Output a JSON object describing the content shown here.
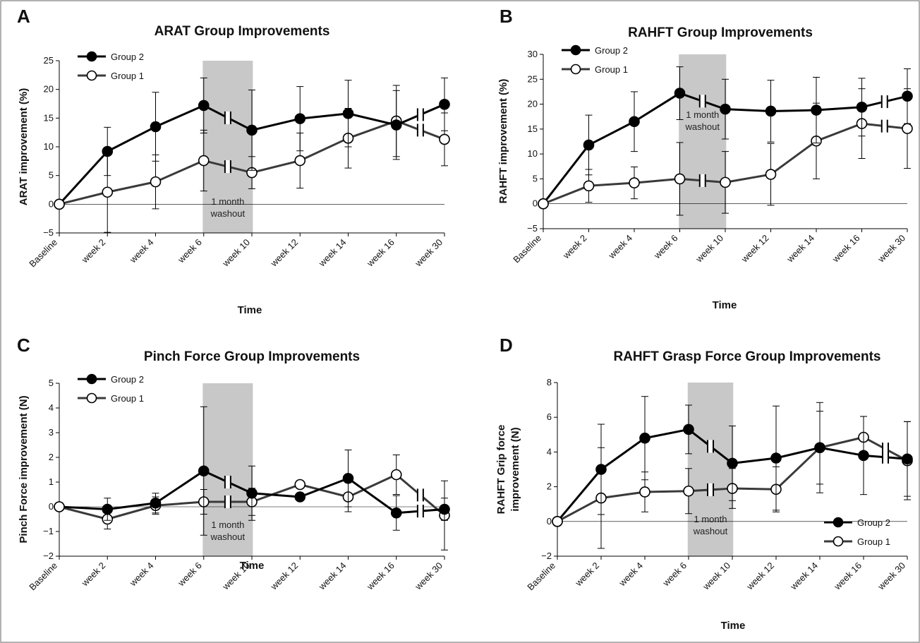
{
  "figure": {
    "panels": [
      {
        "letter": "A",
        "chart_index": 0
      },
      {
        "letter": "B",
        "chart_index": 1
      },
      {
        "letter": "C",
        "chart_index": 2
      },
      {
        "letter": "D",
        "chart_index": 3
      }
    ]
  },
  "chart_data": [
    {
      "type": "line",
      "title": "ARAT Group Improvements",
      "xlabel": "Time",
      "ylabel": "ARAT improvement (%)",
      "categories": [
        "Baseline",
        "week 2",
        "week 4",
        "week 6",
        "week 10",
        "week 12",
        "week 14",
        "week 16",
        "week 30"
      ],
      "ylim": [
        -5,
        25
      ],
      "yticks": [
        -5,
        0,
        5,
        10,
        15,
        20,
        25
      ],
      "legend_position": "top-left",
      "washout_label": [
        "1 month",
        "washout"
      ],
      "washout_range": [
        "week 6",
        "week 10"
      ],
      "series": [
        {
          "name": "Group 2",
          "marker": "filled",
          "values": [
            0,
            9.2,
            13.5,
            17.2,
            12.9,
            14.9,
            15.8,
            13.8,
            17.4
          ],
          "errors": [
            null,
            4.2,
            6.0,
            4.8,
            7.0,
            5.6,
            5.8,
            6.0,
            4.6
          ]
        },
        {
          "name": "Group 1",
          "marker": "open",
          "values": [
            0,
            2.1,
            3.9,
            7.6,
            5.5,
            7.6,
            11.5,
            14.5,
            11.3
          ],
          "errors": [
            null,
            7.0,
            4.7,
            5.3,
            2.8,
            4.8,
            5.2,
            6.2,
            4.6
          ]
        }
      ]
    },
    {
      "type": "line",
      "title": "RAHFT  Group Improvements",
      "xlabel": "Time",
      "ylabel": "RAHFT improvement (%)",
      "categories": [
        "Baseline",
        "week 2",
        "week 4",
        "week 6",
        "week 10",
        "week 12",
        "week 14",
        "week 16",
        "week 30"
      ],
      "ylim": [
        -5,
        30
      ],
      "yticks": [
        -5,
        0,
        5,
        10,
        15,
        20,
        25,
        30
      ],
      "legend_position": "top-left",
      "washout_label": [
        "1 month",
        "washout"
      ],
      "washout_range": [
        "week 6",
        "week 10"
      ],
      "series": [
        {
          "name": "Group 2",
          "marker": "filled",
          "values": [
            0,
            11.8,
            16.5,
            22.2,
            19.0,
            18.6,
            18.8,
            19.4,
            21.6
          ],
          "errors": [
            null,
            6.0,
            6.0,
            5.3,
            6.0,
            6.2,
            6.6,
            5.8,
            5.5
          ]
        },
        {
          "name": "Group 1",
          "marker": "open",
          "values": [
            0,
            3.6,
            4.2,
            5.0,
            4.3,
            5.9,
            12.6,
            16.1,
            15.1
          ],
          "errors": [
            null,
            3.3,
            3.2,
            7.3,
            6.2,
            6.2,
            7.6,
            7.0,
            8.0
          ]
        }
      ]
    },
    {
      "type": "line",
      "title": "Pinch Force Group Improvements",
      "xlabel": "Time",
      "ylabel": "Pinch Force improvement (N)",
      "categories": [
        "Baseline",
        "week 2",
        "week 4",
        "week 6",
        "week 10",
        "week 12",
        "week 14",
        "week 16",
        "week 30"
      ],
      "ylim": [
        -2,
        5
      ],
      "yticks": [
        -2,
        -1,
        0,
        1,
        2,
        3,
        4,
        5
      ],
      "legend_position": "top-left",
      "washout_label": [
        "1 month",
        "washout"
      ],
      "washout_range": [
        "week 6",
        "week 10"
      ],
      "series": [
        {
          "name": "Group 2",
          "marker": "filled",
          "values": [
            0,
            -0.1,
            0.15,
            1.45,
            0.55,
            0.4,
            1.15,
            -0.25,
            -0.1
          ],
          "errors": [
            null,
            0.45,
            0.4,
            2.6,
            1.1,
            null,
            1.15,
            0.7,
            0.45
          ]
        },
        {
          "name": "Group 1",
          "marker": "open",
          "values": [
            0,
            -0.5,
            0.05,
            0.2,
            0.2,
            0.9,
            0.4,
            1.3,
            -0.35
          ],
          "errors": [
            null,
            0.4,
            0.35,
            0.5,
            0.55,
            null,
            0.6,
            0.8,
            1.4
          ]
        }
      ]
    },
    {
      "type": "line",
      "title": "RAHFT Grasp Force Group Improvements",
      "xlabel": "Time",
      "ylabel_lines": [
        "RAHFT Grip force",
        "improvement (N)"
      ],
      "categories": [
        "Baseline",
        "week 2",
        "week 4",
        "week 6",
        "week 10",
        "week 12",
        "week 14",
        "week 16",
        "week 30"
      ],
      "ylim": [
        -2,
        8
      ],
      "yticks": [
        -2,
        0,
        2,
        4,
        6,
        8
      ],
      "legend_position": "bottom-right",
      "washout_label": [
        "1 month",
        "washout"
      ],
      "washout_range": [
        "week 6",
        "week 10"
      ],
      "series": [
        {
          "name": "Group 2",
          "marker": "filled",
          "values": [
            0,
            3.0,
            4.8,
            5.3,
            3.35,
            3.65,
            4.25,
            3.8,
            3.6
          ],
          "errors": [
            null,
            2.6,
            2.4,
            1.4,
            2.15,
            3.0,
            2.1,
            2.25,
            2.15
          ]
        },
        {
          "name": "Group 1",
          "marker": "open",
          "values": [
            0,
            1.35,
            1.7,
            1.75,
            1.9,
            1.85,
            4.25,
            4.85,
            3.5
          ],
          "errors": [
            null,
            2.9,
            1.15,
            1.3,
            1.15,
            1.3,
            2.6,
            1.2,
            2.25
          ]
        }
      ]
    }
  ]
}
